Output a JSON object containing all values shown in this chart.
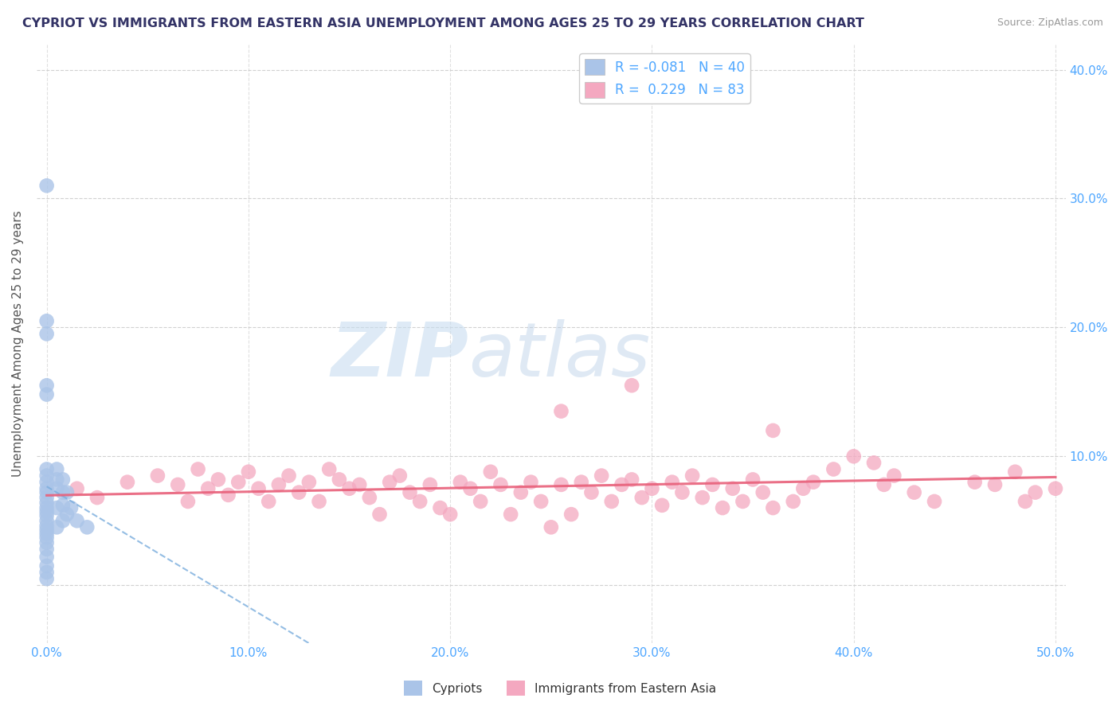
{
  "title": "CYPRIOT VS IMMIGRANTS FROM EASTERN ASIA UNEMPLOYMENT AMONG AGES 25 TO 29 YEARS CORRELATION CHART",
  "source": "Source: ZipAtlas.com",
  "ylabel": "Unemployment Among Ages 25 to 29 years",
  "xlim": [
    -0.005,
    0.505
  ],
  "ylim": [
    -0.045,
    0.42
  ],
  "xticks": [
    0.0,
    0.1,
    0.2,
    0.3,
    0.4,
    0.5
  ],
  "yticks": [
    0.0,
    0.1,
    0.2,
    0.3,
    0.4
  ],
  "grid_color": "#cccccc",
  "cypriot_color": "#aac4e8",
  "eastern_asia_color": "#f4a8c0",
  "cypriot_line_color": "#7aaddd",
  "eastern_asia_line_color": "#e8607a",
  "cypriot_R": -0.081,
  "cypriot_N": 40,
  "eastern_asia_R": 0.229,
  "eastern_asia_N": 83,
  "legend_label_1": "Cypriots",
  "legend_label_2": "Immigrants from Eastern Asia",
  "watermark_zip": "ZIP",
  "watermark_atlas": "atlas",
  "tick_color": "#4da6ff",
  "title_color": "#333366",
  "source_color": "#999999",
  "ylabel_color": "#555555",
  "cypriot_x": [
    0.0,
    0.0,
    0.0,
    0.0,
    0.0,
    0.0,
    0.0,
    0.0,
    0.0,
    0.0,
    0.0,
    0.0,
    0.0,
    0.0,
    0.0,
    0.0,
    0.0,
    0.0,
    0.0,
    0.0,
    0.0,
    0.0,
    0.0,
    0.0,
    0.0,
    0.0,
    0.005,
    0.005,
    0.005,
    0.005,
    0.005,
    0.008,
    0.008,
    0.008,
    0.008,
    0.01,
    0.01,
    0.012,
    0.015,
    0.02
  ],
  "cypriot_y": [
    0.31,
    0.205,
    0.195,
    0.155,
    0.148,
    0.09,
    0.085,
    0.08,
    0.075,
    0.072,
    0.068,
    0.064,
    0.06,
    0.057,
    0.054,
    0.05,
    0.046,
    0.043,
    0.04,
    0.037,
    0.033,
    0.028,
    0.022,
    0.015,
    0.01,
    0.005,
    0.09,
    0.082,
    0.075,
    0.06,
    0.045,
    0.082,
    0.072,
    0.062,
    0.05,
    0.072,
    0.055,
    0.06,
    0.05,
    0.045
  ],
  "eastern_asia_x": [
    0.015,
    0.025,
    0.04,
    0.055,
    0.065,
    0.07,
    0.075,
    0.08,
    0.085,
    0.09,
    0.095,
    0.1,
    0.105,
    0.11,
    0.115,
    0.12,
    0.125,
    0.13,
    0.135,
    0.14,
    0.145,
    0.15,
    0.155,
    0.16,
    0.165,
    0.17,
    0.175,
    0.18,
    0.185,
    0.19,
    0.195,
    0.2,
    0.205,
    0.21,
    0.215,
    0.22,
    0.225,
    0.23,
    0.235,
    0.24,
    0.245,
    0.25,
    0.255,
    0.26,
    0.265,
    0.27,
    0.275,
    0.28,
    0.285,
    0.29,
    0.295,
    0.3,
    0.305,
    0.31,
    0.315,
    0.32,
    0.325,
    0.33,
    0.335,
    0.34,
    0.345,
    0.35,
    0.355,
    0.36,
    0.37,
    0.375,
    0.38,
    0.39,
    0.4,
    0.41,
    0.415,
    0.42,
    0.43,
    0.44,
    0.46,
    0.47,
    0.48,
    0.485,
    0.49,
    0.5,
    0.255,
    0.29,
    0.36
  ],
  "eastern_asia_y": [
    0.075,
    0.068,
    0.08,
    0.085,
    0.078,
    0.065,
    0.09,
    0.075,
    0.082,
    0.07,
    0.08,
    0.088,
    0.075,
    0.065,
    0.078,
    0.085,
    0.072,
    0.08,
    0.065,
    0.09,
    0.082,
    0.075,
    0.078,
    0.068,
    0.055,
    0.08,
    0.085,
    0.072,
    0.065,
    0.078,
    0.06,
    0.055,
    0.08,
    0.075,
    0.065,
    0.088,
    0.078,
    0.055,
    0.072,
    0.08,
    0.065,
    0.045,
    0.078,
    0.055,
    0.08,
    0.072,
    0.085,
    0.065,
    0.078,
    0.082,
    0.068,
    0.075,
    0.062,
    0.08,
    0.072,
    0.085,
    0.068,
    0.078,
    0.06,
    0.075,
    0.065,
    0.082,
    0.072,
    0.06,
    0.065,
    0.075,
    0.08,
    0.09,
    0.1,
    0.095,
    0.078,
    0.085,
    0.072,
    0.065,
    0.08,
    0.078,
    0.088,
    0.065,
    0.072,
    0.075,
    0.135,
    0.155,
    0.12
  ]
}
